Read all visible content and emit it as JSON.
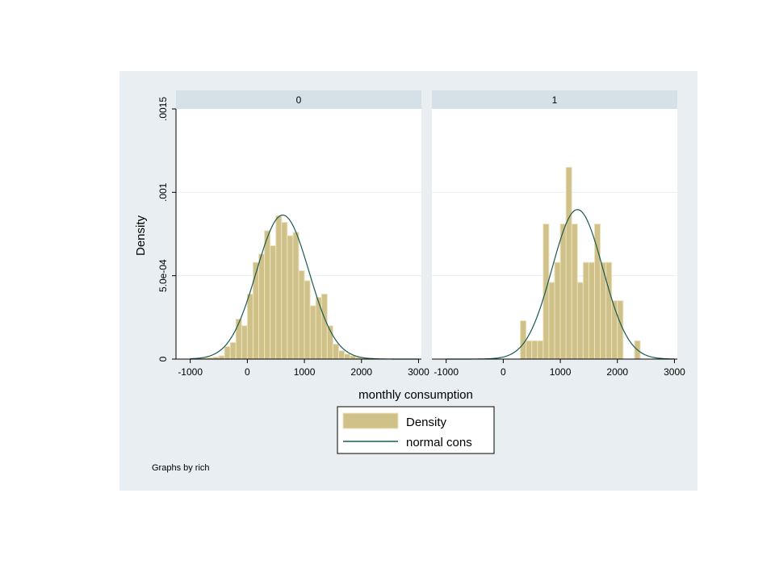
{
  "chart_data": {
    "type": "bar",
    "title": "",
    "xlabel": "monthly consumption",
    "ylabel": "Density",
    "xlim": [
      -1000,
      3000
    ],
    "ylim": [
      0,
      0.0015
    ],
    "x_ticks": [
      -1000,
      0,
      1000,
      2000,
      3000
    ],
    "x_tick_labels": [
      "-1000",
      "0",
      "1000",
      "2000",
      "3000"
    ],
    "y_ticks": [
      0,
      0.0005,
      0.001,
      0.0015
    ],
    "y_tick_labels": [
      "0",
      "5.0e-04",
      ".001",
      ".0015"
    ],
    "grid": true,
    "legend_position": "bottom",
    "note": "Graphs by rich",
    "colors": {
      "bar": "#cfc187",
      "bar_edge": "#ebe3c2",
      "line": "#1b5a55",
      "panel_bg": "#e8eef1",
      "strip_bg": "#d5e1e7"
    },
    "legend": [
      "Density",
      "normal cons"
    ],
    "panels": [
      {
        "label": "0",
        "bin_width": 100,
        "bins": [
          {
            "x": -1000,
            "density": 5e-06
          },
          {
            "x": -900,
            "density": 5e-06
          },
          {
            "x": -800,
            "density": 7e-06
          },
          {
            "x": -700,
            "density": 8e-06
          },
          {
            "x": -600,
            "density": 1.2e-05
          },
          {
            "x": -500,
            "density": 2e-05
          },
          {
            "x": -400,
            "density": 7.5e-05
          },
          {
            "x": -300,
            "density": 0.0001
          },
          {
            "x": -200,
            "density": 0.00024
          },
          {
            "x": -100,
            "density": 0.0002
          },
          {
            "x": 0,
            "density": 0.00039
          },
          {
            "x": 100,
            "density": 0.00058
          },
          {
            "x": 200,
            "density": 0.00063
          },
          {
            "x": 300,
            "density": 0.00077
          },
          {
            "x": 400,
            "density": 0.00068
          },
          {
            "x": 500,
            "density": 0.00086
          },
          {
            "x": 600,
            "density": 0.00082
          },
          {
            "x": 700,
            "density": 0.00074
          },
          {
            "x": 800,
            "density": 0.00076
          },
          {
            "x": 900,
            "density": 0.00053
          },
          {
            "x": 1000,
            "density": 0.00047
          },
          {
            "x": 1100,
            "density": 0.00032
          },
          {
            "x": 1200,
            "density": 0.00037
          },
          {
            "x": 1300,
            "density": 0.00039
          },
          {
            "x": 1400,
            "density": 0.0002
          },
          {
            "x": 1500,
            "density": 9e-05
          },
          {
            "x": 1600,
            "density": 5e-05
          },
          {
            "x": 1700,
            "density": 3e-05
          },
          {
            "x": 1800,
            "density": 2e-05
          },
          {
            "x": 1900,
            "density": 1e-05
          },
          {
            "x": 2000,
            "density": 8e-06
          },
          {
            "x": 2100,
            "density": 5e-06
          },
          {
            "x": 2200,
            "density": 5e-06
          }
        ],
        "normal": {
          "mean": 620,
          "sd": 462
        }
      },
      {
        "label": "1",
        "bin_width": 100,
        "bins": [
          {
            "x": 300,
            "density": 0.00023
          },
          {
            "x": 400,
            "density": 0.00011
          },
          {
            "x": 500,
            "density": 0.00011
          },
          {
            "x": 600,
            "density": 0.00011
          },
          {
            "x": 700,
            "density": 0.00081
          },
          {
            "x": 800,
            "density": 0.00046
          },
          {
            "x": 900,
            "density": 0.00058
          },
          {
            "x": 1000,
            "density": 0.00081
          },
          {
            "x": 1100,
            "density": 0.00115
          },
          {
            "x": 1200,
            "density": 0.00081
          },
          {
            "x": 1300,
            "density": 0.00046
          },
          {
            "x": 1400,
            "density": 0.00058
          },
          {
            "x": 1500,
            "density": 0.00058
          },
          {
            "x": 1600,
            "density": 0.00081
          },
          {
            "x": 1700,
            "density": 0.00058
          },
          {
            "x": 1800,
            "density": 0.00058
          },
          {
            "x": 1900,
            "density": 0.00035
          },
          {
            "x": 2000,
            "density": 0.00035
          },
          {
            "x": 2300,
            "density": 0.00011
          }
        ],
        "normal": {
          "mean": 1300,
          "sd": 445
        }
      }
    ]
  }
}
